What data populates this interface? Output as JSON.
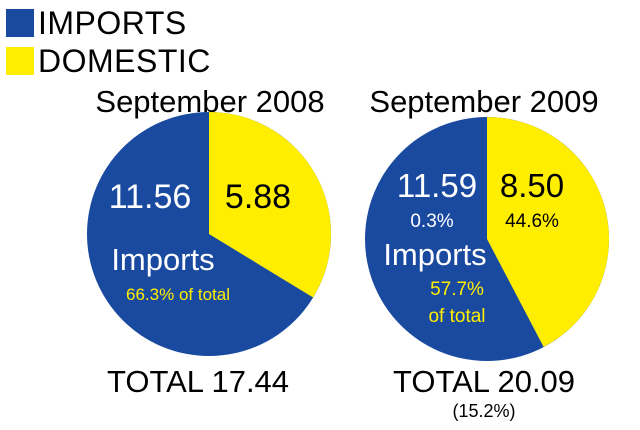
{
  "legend": [
    {
      "label": "IMPORTS",
      "color": "#1a4aa0"
    },
    {
      "label": "DOMESTIC",
      "color": "#ffee00"
    }
  ],
  "chart_data": [
    {
      "type": "pie",
      "title": "September 2008",
      "categories": [
        "IMPORTS",
        "DOMESTIC"
      ],
      "values": [
        11.56,
        5.88
      ],
      "value_labels": [
        "11.56",
        "5.88"
      ],
      "pct_labels": [
        "",
        ""
      ],
      "imports_label": "Imports",
      "imports_share": [
        "66.3% of total"
      ],
      "total": "TOTAL 17.44",
      "total_change": ""
    },
    {
      "type": "pie",
      "title": "September 2009",
      "categories": [
        "IMPORTS",
        "DOMESTIC"
      ],
      "values": [
        11.59,
        8.5
      ],
      "value_labels": [
        "11.59",
        "8.50"
      ],
      "pct_labels": [
        "0.3%",
        "44.6%"
      ],
      "imports_label": "Imports",
      "imports_share": [
        "57.7%",
        "of total"
      ],
      "total": "TOTAL 20.09",
      "total_change": "(15.2%)"
    }
  ],
  "colors": {
    "imports": "#1a4aa0",
    "domestic": "#ffee00",
    "share_text": "#ffee00",
    "on_blue": "#ffffff",
    "on_yellow": "#000000"
  }
}
